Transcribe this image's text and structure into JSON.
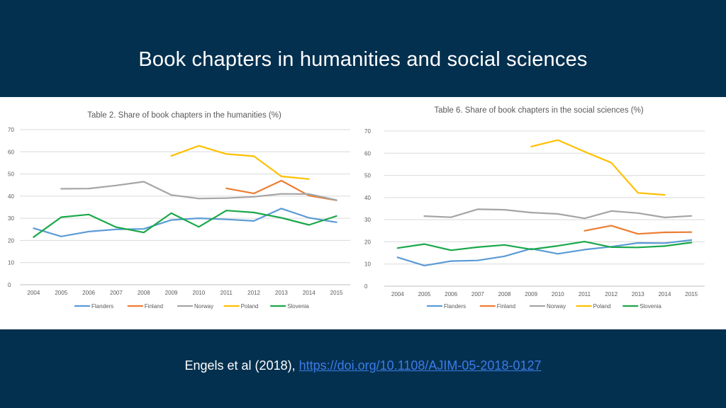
{
  "slide": {
    "title": "Book chapters in humanities and social sciences",
    "citation_text": "Engels et al (2018),",
    "citation_link": "https://doi.org/10.1108/AJIM-05-2018-0127"
  },
  "colors": {
    "background": "#04304f",
    "Flanders": "#5b9bd5",
    "Finland": "#ed7d31",
    "Norway": "#a5a5a5",
    "Poland": "#ffc000",
    "Slovenia": "#1aa84a"
  },
  "chart_data": [
    {
      "type": "line",
      "title": "Table 2. Share of book chapters in the humanities (%)",
      "x": [
        "2004",
        "2005",
        "2006",
        "2007",
        "2008",
        "2009",
        "2010",
        "2011",
        "2012",
        "2013",
        "2014",
        "2015"
      ],
      "ylim": [
        0,
        70
      ],
      "yticks": [
        0,
        10,
        20,
        30,
        40,
        50,
        60,
        70
      ],
      "grid": true,
      "legend_position": "bottom",
      "series": [
        {
          "name": "Flanders",
          "values": [
            25.5,
            21.8,
            24,
            25,
            25.2,
            29.2,
            30,
            29.5,
            28.8,
            34.4,
            30.2,
            28.2
          ]
        },
        {
          "name": "Finland",
          "values": [
            null,
            null,
            null,
            null,
            null,
            null,
            null,
            43.5,
            41.2,
            47,
            40.2,
            38.1
          ]
        },
        {
          "name": "Norway",
          "values": [
            null,
            43.3,
            43.4,
            44.8,
            46.5,
            40.5,
            38.9,
            39.1,
            39.7,
            41,
            40.9,
            38.2
          ]
        },
        {
          "name": "Poland",
          "values": [
            null,
            null,
            null,
            null,
            null,
            58.1,
            62.7,
            59,
            58,
            48.9,
            47.7,
            null
          ]
        },
        {
          "name": "Slovenia",
          "values": [
            21.5,
            30.5,
            31.7,
            26,
            23.6,
            32.3,
            26.1,
            33.5,
            32.6,
            30.2,
            27,
            31
          ]
        }
      ]
    },
    {
      "type": "line",
      "title": "Table 6. Share of book chapters in the social sciences (%)",
      "x": [
        "2004",
        "2005",
        "2006",
        "2007",
        "2008",
        "2009",
        "2010",
        "2011",
        "2012",
        "2013",
        "2014",
        "2015"
      ],
      "ylim": [
        0,
        70
      ],
      "yticks": [
        0,
        10,
        20,
        30,
        40,
        50,
        60,
        70
      ],
      "grid": true,
      "legend_position": "bottom",
      "series": [
        {
          "name": "Flanders",
          "values": [
            13,
            9.3,
            11.3,
            11.6,
            13.5,
            16.9,
            14.6,
            16.5,
            17.8,
            19.5,
            19.4,
            20.8
          ]
        },
        {
          "name": "Finland",
          "values": [
            null,
            null,
            null,
            null,
            null,
            null,
            null,
            25,
            27.3,
            23.6,
            24.3,
            24.4
          ]
        },
        {
          "name": "Norway",
          "values": [
            null,
            31.6,
            31.1,
            34.7,
            34.5,
            33.2,
            32.6,
            30.6,
            33.9,
            33,
            31,
            31.7
          ]
        },
        {
          "name": "Poland",
          "values": [
            null,
            null,
            null,
            null,
            null,
            63,
            65.9,
            60.7,
            55.7,
            42.1,
            41.2,
            null
          ]
        },
        {
          "name": "Slovenia",
          "values": [
            17.2,
            19,
            16.2,
            17.6,
            18.6,
            16.6,
            18.2,
            20.1,
            17.6,
            17.5,
            18.1,
            19.7
          ]
        }
      ]
    }
  ]
}
